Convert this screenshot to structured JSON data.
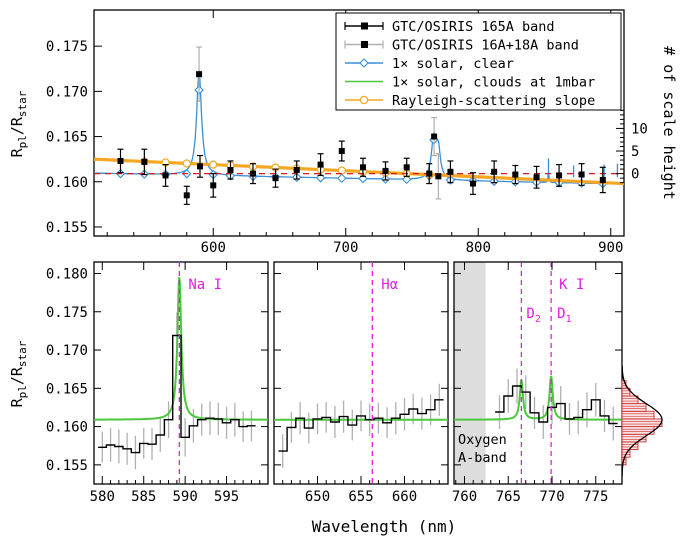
{
  "chart_data": [
    {
      "type": "line",
      "panel": "top",
      "ylabel_main": "R",
      "ylabel_sub1": "pl",
      "ylabel_mid": "/R",
      "ylabel_sub2": "star",
      "y2label": "# of scale height",
      "xlim": [
        510,
        910
      ],
      "ylim": [
        0.154,
        0.179
      ],
      "xticks": [
        "600",
        "700",
        "800",
        "900"
      ],
      "yticks": [
        "0.155",
        "0.160",
        "0.165",
        "0.170",
        "0.175"
      ],
      "y2ticks": [
        "0",
        "5",
        "10"
      ],
      "reference_line": 0.1609,
      "legend": {
        "placement": "top-right",
        "entries": [
          {
            "label": "GTC/OSIRIS 165A band",
            "color": "#000000",
            "marker": "square"
          },
          {
            "label": "GTC/OSIRIS 16A+18A band",
            "color": "#000000",
            "marker": "square",
            "errcolor": "#b0b0b0"
          },
          {
            "label": "1× solar, clear",
            "color": "#3a8fd8",
            "marker": "diamond"
          },
          {
            "label": "1× solar, clouds at 1mbar",
            "color": "#4cc83c",
            "marker": "none"
          },
          {
            "label": "Rayleigh-scattering slope",
            "color": "#f5a623",
            "marker": "circle"
          }
        ]
      },
      "series": [
        {
          "name": "GTC/OSIRIS 165A band",
          "x": [
            530,
            548,
            564,
            580,
            590,
            600,
            613,
            630,
            647,
            663,
            681,
            697,
            713,
            730,
            746,
            763,
            779,
            796,
            812,
            828,
            844,
            861,
            878,
            894
          ],
          "y": [
            0.1623,
            0.1622,
            0.1607,
            0.1585,
            0.1617,
            0.1596,
            0.1613,
            0.1609,
            0.1604,
            0.1613,
            0.1619,
            0.1634,
            0.1616,
            0.1612,
            0.1616,
            0.1609,
            0.1611,
            0.1598,
            0.1611,
            0.1608,
            0.1605,
            0.1607,
            0.1608,
            0.1602
          ],
          "err": [
            0.0013,
            0.0014,
            0.0012,
            0.001,
            0.0012,
            0.0013,
            0.001,
            0.0011,
            0.001,
            0.001,
            0.0012,
            0.0011,
            0.001,
            0.001,
            0.001,
            0.0011,
            0.0012,
            0.0012,
            0.0012,
            0.001,
            0.0012,
            0.0012,
            0.0012,
            0.0014
          ]
        },
        {
          "name": "GTC/OSIRIS 16A+18A band",
          "x": [
            589.3,
            766.7,
            769.9
          ],
          "y": [
            0.1719,
            0.165,
            0.1606
          ],
          "err": [
            0.003,
            0.0021,
            0.0025
          ]
        },
        {
          "name": "Rayleigh-scattering slope",
          "x": [
            510,
            910
          ],
          "y": [
            0.1625,
            0.1598
          ]
        }
      ]
    },
    {
      "type": "line",
      "panel": "bottom-1",
      "annotation": "Na I",
      "line_x": 589.3,
      "xlim": [
        579,
        600
      ],
      "xticks": [
        "580",
        "585",
        "590",
        "595"
      ],
      "ylim": [
        0.1525,
        0.1815
      ],
      "yticks": [
        "0.155",
        "0.160",
        "0.165",
        "0.170",
        "0.175",
        "0.180"
      ],
      "bins": {
        "x": [
          580,
          581,
          582,
          583,
          584,
          585,
          586,
          587,
          588,
          589,
          590,
          591,
          592,
          593,
          594,
          595,
          596,
          597,
          598
        ],
        "y": [
          0.1573,
          0.1576,
          0.1574,
          0.1571,
          0.1566,
          0.1578,
          0.1577,
          0.1589,
          0.1609,
          0.1719,
          0.1586,
          0.1601,
          0.1609,
          0.1611,
          0.161,
          0.1605,
          0.1609,
          0.16,
          0.1601
        ],
        "err": [
          0.002,
          0.0022,
          0.0022,
          0.0021,
          0.0022,
          0.002,
          0.0021,
          0.0022,
          0.0024,
          0.003,
          0.0025,
          0.0022,
          0.0021,
          0.0022,
          0.0021,
          0.0021,
          0.0022,
          0.002,
          0.002
        ]
      },
      "model_center": 589.3,
      "model_peak": 0.1795,
      "model_base": 0.1609
    },
    {
      "type": "line",
      "panel": "bottom-2",
      "annotation": "Hα",
      "line_x": 656.3,
      "xlim": [
        645,
        665
      ],
      "xticks": [
        "650",
        "655",
        "660"
      ],
      "bins": {
        "x": [
          646,
          647,
          648,
          649,
          650,
          651,
          652,
          653,
          654,
          655,
          656,
          657,
          658,
          659,
          660,
          661,
          662,
          663,
          664
        ],
        "y": [
          0.1568,
          0.1599,
          0.1611,
          0.1598,
          0.161,
          0.1612,
          0.1606,
          0.1613,
          0.1602,
          0.1614,
          0.1609,
          0.1611,
          0.1605,
          0.1611,
          0.1616,
          0.1623,
          0.1617,
          0.1622,
          0.1635
        ],
        "err": [
          0.0022,
          0.002,
          0.0021,
          0.002,
          0.002,
          0.002,
          0.0021,
          0.0021,
          0.002,
          0.002,
          0.0021,
          0.002,
          0.002,
          0.0021,
          0.0021,
          0.002,
          0.0021,
          0.002,
          0.0021
        ]
      },
      "model_base": 0.1609
    },
    {
      "type": "line",
      "panel": "bottom-3",
      "annotation": "K I",
      "label_d2": "D",
      "label_d2_sub": "2",
      "label_d1": "D",
      "label_d1_sub": "1",
      "line_x": [
        766.5,
        769.9
      ],
      "shade_label_1": "Oxygen",
      "shade_label_2": "A-band",
      "shade_x": [
        758.8,
        762.4
      ],
      "xlim": [
        758.8,
        778.0
      ],
      "xticks": [
        "760",
        "765",
        "770",
        "775"
      ],
      "bins": {
        "x": [
          764,
          765,
          766,
          767,
          768,
          769,
          770,
          771,
          772,
          773,
          774,
          775,
          776,
          777
        ],
        "y": [
          0.1619,
          0.164,
          0.1653,
          0.1645,
          0.1618,
          0.1606,
          0.1625,
          0.163,
          0.161,
          0.1612,
          0.1622,
          0.1635,
          0.1614,
          0.1604
        ],
        "err": [
          0.0022,
          0.0022,
          0.0023,
          0.0022,
          0.0021,
          0.0022,
          0.0022,
          0.0023,
          0.0021,
          0.0022,
          0.0023,
          0.0022,
          0.0021,
          0.0022
        ]
      },
      "model_peaks": [
        {
          "center": 766.5,
          "peak": 0.1661
        },
        {
          "center": 769.9,
          "peak": 0.1666
        }
      ],
      "model_base": 0.1609
    },
    {
      "type": "bar",
      "panel": "histogram",
      "orientation": "horizontal",
      "color": "#c83232",
      "bin_centers": [
        0.1555,
        0.1565,
        0.1575,
        0.1585,
        0.1595,
        0.1605,
        0.1615,
        0.1625,
        0.1635,
        0.1645,
        0.1655
      ],
      "counts": [
        1,
        2,
        4,
        6,
        8,
        10,
        8,
        6,
        4,
        2,
        1
      ]
    }
  ],
  "xlabel": "Wavelength (nm)",
  "colors": {
    "model_clear": "#3a8fd8",
    "model_cloudy": "#4cc83c",
    "rayleigh": "#f5a623",
    "reference": "#e01818",
    "line_marker": "#e020e0",
    "gray_err": "#b0b0b0",
    "oxygen_band": "#dddddd"
  }
}
